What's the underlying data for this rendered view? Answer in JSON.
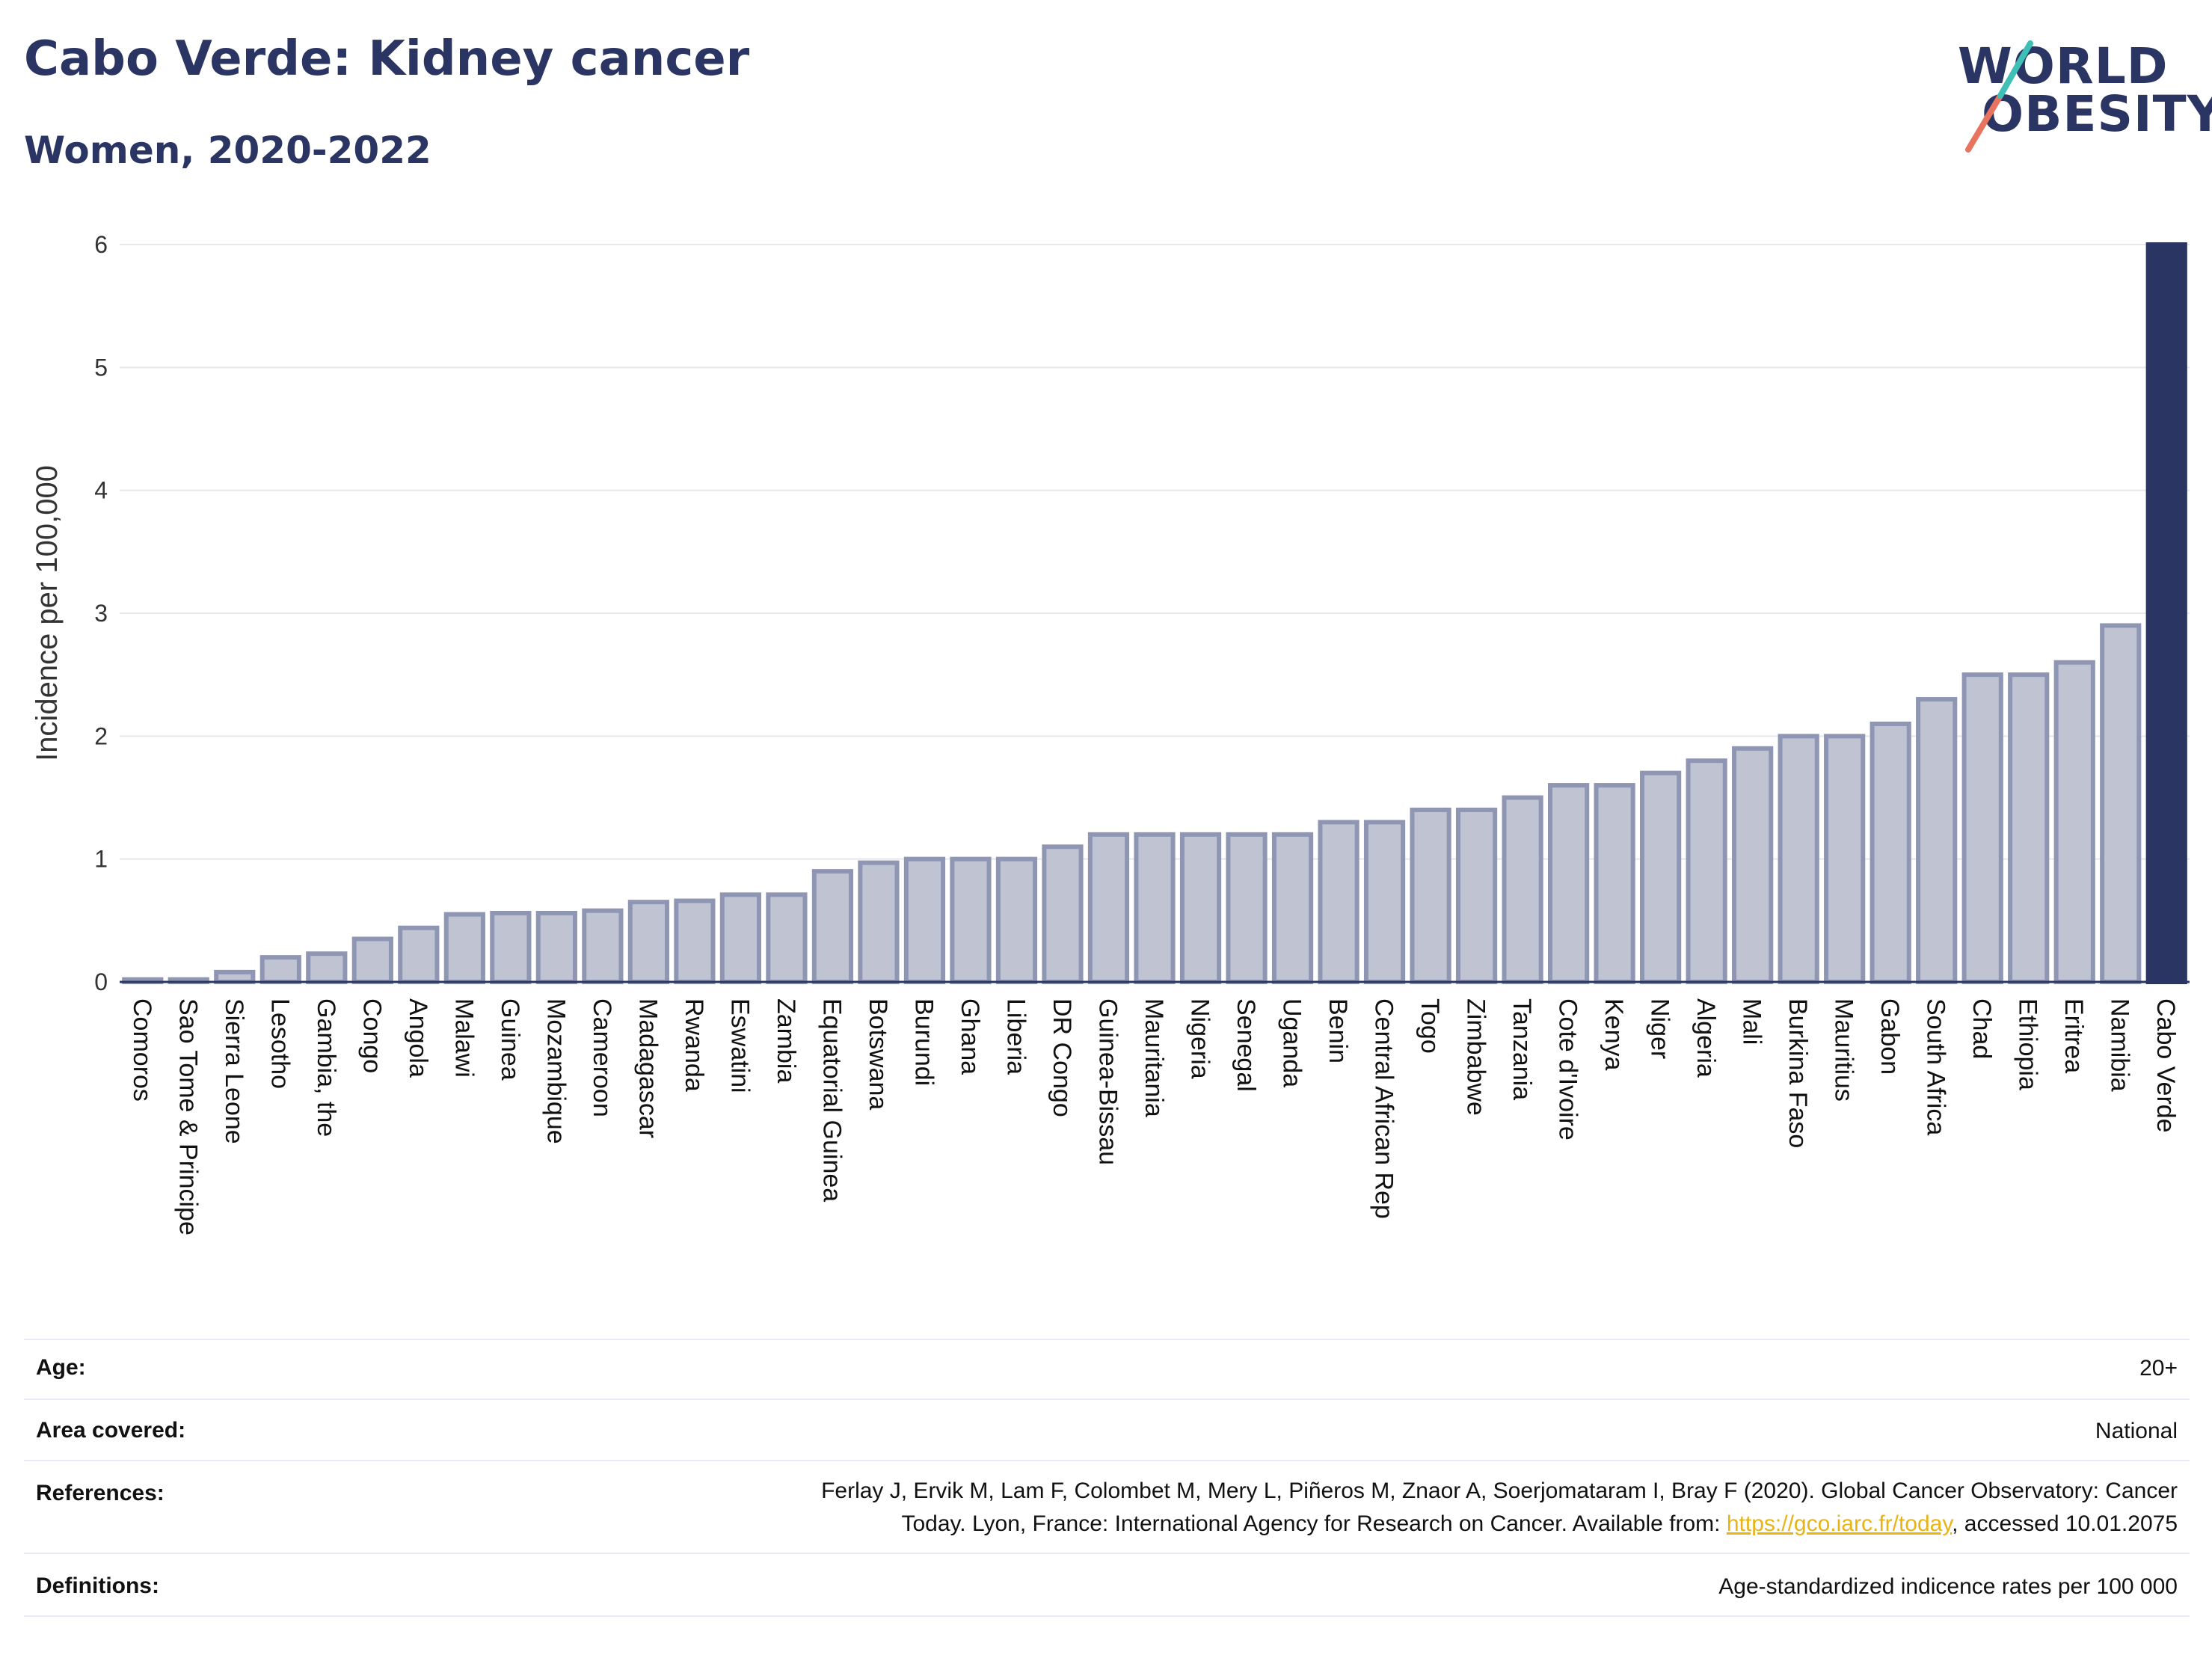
{
  "header": {
    "title": "Cabo Verde: Kidney cancer",
    "subtitle": "Women, 2020-2022",
    "logo_line1": "WORLD",
    "logo_line2": "OBESITY"
  },
  "colors": {
    "bar_fill": "#c0c4d2",
    "bar_stroke": "#8f96b4",
    "highlight": "#2b3563",
    "text": "#2b3563",
    "grid": "#e6e8ee",
    "link": "#e8b415",
    "logo_teal": "#3fbfb5",
    "logo_coral": "#e8735e"
  },
  "chart_data": {
    "type": "bar",
    "ylabel": "Incidence per 100,000",
    "xlabel": "",
    "ylim": [
      0,
      6
    ],
    "yticks": [
      0,
      1,
      2,
      3,
      4,
      5,
      6
    ],
    "highlight": "Cabo Verde",
    "categories": [
      "Comoros",
      "Sao Tome & Principe",
      "Sierra Leone",
      "Lesotho",
      "Gambia, the",
      "Congo",
      "Angola",
      "Malawi",
      "Guinea",
      "Mozambique",
      "Cameroon",
      "Madagascar",
      "Rwanda",
      "Eswatini",
      "Zambia",
      "Equatorial Guinea",
      "Botswana",
      "Burundi",
      "Ghana",
      "Liberia",
      "DR Congo",
      "Guinea-Bissau",
      "Mauritania",
      "Nigeria",
      "Senegal",
      "Uganda",
      "Benin",
      "Central African Rep",
      "Togo",
      "Zimbabwe",
      "Tanzania",
      "Cote d'Ivoire",
      "Kenya",
      "Niger",
      "Algeria",
      "Mali",
      "Burkina Faso",
      "Mauritius",
      "Gabon",
      "South Africa",
      "Chad",
      "Ethiopia",
      "Eritrea",
      "Namibia",
      "Cabo Verde"
    ],
    "values": [
      0.02,
      0.02,
      0.08,
      0.2,
      0.23,
      0.35,
      0.44,
      0.55,
      0.56,
      0.56,
      0.58,
      0.65,
      0.66,
      0.71,
      0.71,
      0.9,
      0.97,
      1.0,
      1.0,
      1.0,
      1.1,
      1.2,
      1.2,
      1.2,
      1.2,
      1.2,
      1.3,
      1.3,
      1.4,
      1.4,
      1.5,
      1.6,
      1.6,
      1.7,
      1.8,
      1.9,
      2.0,
      2.0,
      2.1,
      2.3,
      2.5,
      2.5,
      2.6,
      2.9,
      6.0
    ]
  },
  "info": {
    "age_label": "Age:",
    "age_value": "20+",
    "area_label": "Area covered:",
    "area_value": "National",
    "references_label": "References:",
    "references_line1": "Ferlay J, Ervik M, Lam F, Colombet M, Mery L, Piñeros M, Znaor A, Soerjomataram I, Bray F (2020). Global Cancer Observatory: Cancer",
    "references_line2_pre": "Today. Lyon, France: International Agency for Research on Cancer. Available from: ",
    "references_link": "https://gco.iarc.fr/today",
    "references_line2_post": ", accessed 10.01.2075",
    "definitions_label": "Definitions:",
    "definitions_value": "Age-standardized indicence rates per 100 000"
  }
}
